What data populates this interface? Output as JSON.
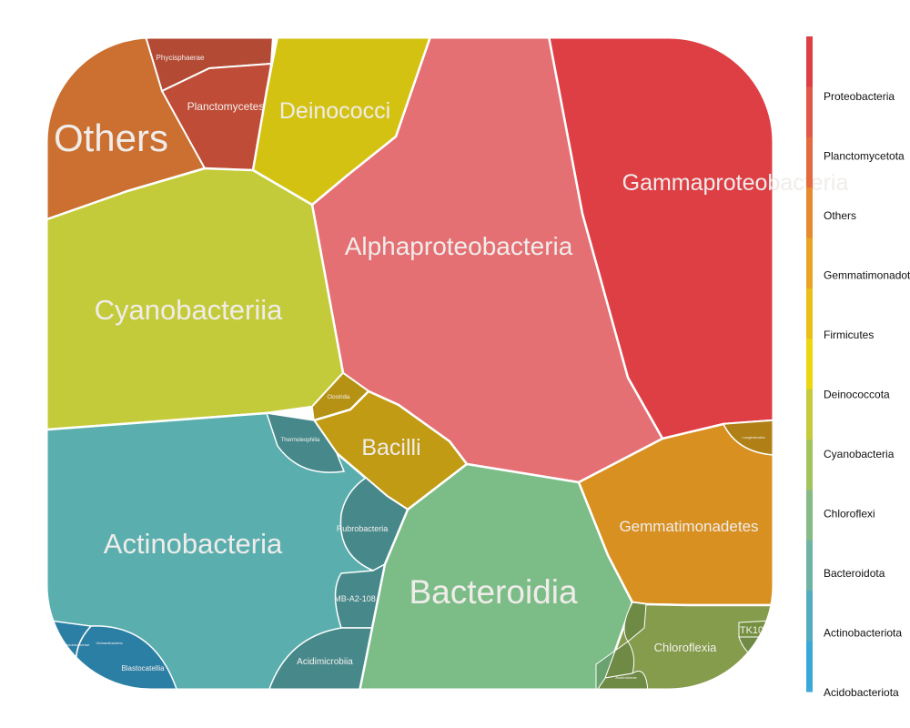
{
  "chart_data": {
    "type": "voronoi-treemap",
    "colors": {
      "Proteobacteria": "#de3f45",
      "Alphaproteobacteria": "#e47074",
      "Planctomycetota": "#bf4c36",
      "Others": "#cb7030",
      "Gemmatimonadota": "#d89021",
      "Firmicutes": "#c19b14",
      "Deinococcota": "#d4c213",
      "Cyanobacteria": "#c4cb3a",
      "Chloroflexi": "#849c4b",
      "Bacteroidota": "#7cbc87",
      "Actinobacteriota": "#5aafae",
      "Actinobacteriota_dark": "#47898b",
      "Acidobacteriota": "#2c7fa4"
    },
    "cells": [
      {
        "label": "Gammaproteobacteria",
        "phylum": "Proteobacteria"
      },
      {
        "label": "Alphaproteobacteria",
        "phylum": "Proteobacteria"
      },
      {
        "label": "Others",
        "phylum": "Others"
      },
      {
        "label": "Phycisphaerae",
        "phylum": "Planctomycetota"
      },
      {
        "label": "Planctomycetes",
        "phylum": "Planctomycetota"
      },
      {
        "label": "Deinococci",
        "phylum": "Deinococcota"
      },
      {
        "label": "Cyanobacteriia",
        "phylum": "Cyanobacteria"
      },
      {
        "label": "Clostridia",
        "phylum": "Firmicutes"
      },
      {
        "label": "Bacilli",
        "phylum": "Firmicutes"
      },
      {
        "label": "Thermoleophilia",
        "phylum": "Actinobacteriota"
      },
      {
        "label": "Actinobacteria",
        "phylum": "Actinobacteriota"
      },
      {
        "label": "Rubrobacteria",
        "phylum": "Actinobacteriota"
      },
      {
        "label": "MB-A2-108",
        "phylum": "Actinobacteriota"
      },
      {
        "label": "Acidimicrobiia",
        "phylum": "Actinobacteriota"
      },
      {
        "label": "Blastocatellia",
        "phylum": "Acidobacteriota"
      },
      {
        "label": "Acidobacteriae",
        "phylum": "Acidobacteriota"
      },
      {
        "label": "Vicinamibacteria",
        "phylum": "Acidobacteriota"
      },
      {
        "label": "Bacteroidia",
        "phylum": "Bacteroidota"
      },
      {
        "label": "Gemmatimonadetes",
        "phylum": "Gemmatimonadota"
      },
      {
        "label": "Longimicrobia",
        "phylum": "Gemmatimonadota"
      },
      {
        "label": "Chloroflexia",
        "phylum": "Chloroflexi"
      },
      {
        "label": "TK10",
        "phylum": "Chloroflexi"
      },
      {
        "label": "Anaerolineae",
        "phylum": "Chloroflexi"
      }
    ],
    "legend": {
      "position": "right",
      "entries": [
        "Proteobacteria",
        "Planctomycetota",
        "Others",
        "Gemmatimonadota",
        "Firmicutes",
        "Deinococcota",
        "Cyanobacteria",
        "Chloroflexi",
        "Bacteroidota",
        "Actinobacteriota",
        "Acidobacteriota"
      ],
      "gradient": [
        "#de3f45",
        "#e05848",
        "#e26a3e",
        "#e68a2e",
        "#e9a424",
        "#ebbe18",
        "#ecd60e",
        "#c6cb3c",
        "#a3c35f",
        "#86ba86",
        "#6fb3a5",
        "#51adbf",
        "#3aa8d8"
      ]
    }
  }
}
